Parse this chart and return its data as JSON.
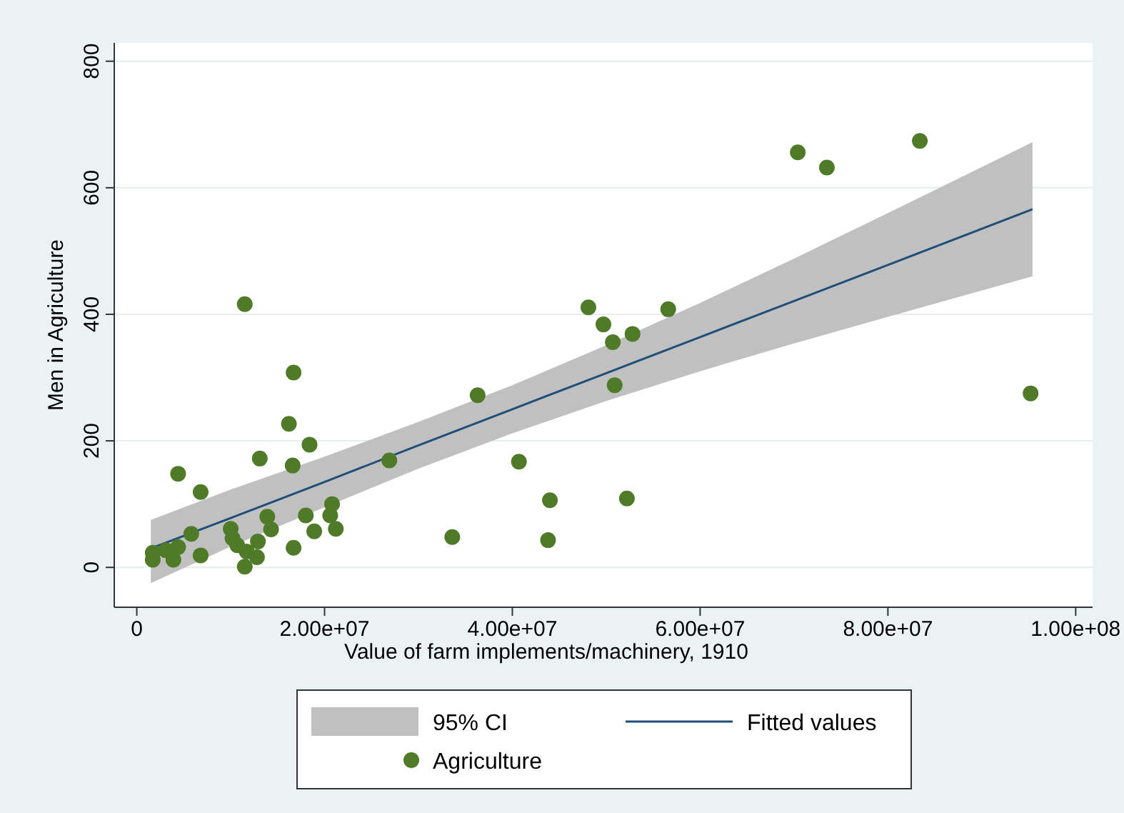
{
  "chart_data": {
    "type": "scatter",
    "xlabel": "Value of farm implements/machinery, 1910",
    "ylabel": "Men in Agriculture",
    "xlim": [
      -2400000,
      101800000
    ],
    "xticks": [
      0,
      {
        "value": 20000000,
        "label": "2.00e+07"
      },
      {
        "value": 40000000,
        "label": "4.00e+07"
      },
      {
        "value": 60000000,
        "label": "6.00e+07"
      },
      {
        "value": 80000000,
        "label": "8.00e+07"
      },
      {
        "value": 100000000,
        "label": "1.00e+08"
      }
    ],
    "ylim": [
      -63,
      829
    ],
    "yticks": [
      0,
      200,
      400,
      600,
      800
    ],
    "grid": "y",
    "legend": "bottom",
    "annotations": [
      "95% CI"
    ],
    "series": [
      {
        "name": "Fitted values",
        "type": "line",
        "color": "#1f4e79",
        "x": [
          1500000,
          10000000,
          20000000,
          30000000,
          40000000,
          50000000,
          60000000,
          70000000,
          80000000,
          95400000
        ],
        "values": [
          30,
          78,
          135,
          193,
          250,
          307,
          364,
          421,
          478,
          566
        ],
        "lower": [
          -25,
          33,
          95,
          156,
          212,
          263,
          310,
          354,
          396,
          460
        ],
        "upper": [
          75,
          123,
          175,
          230,
          288,
          351,
          418,
          488,
          560,
          672
        ]
      },
      {
        "name": "Agriculture",
        "marker": "circle",
        "color": "#4f7a28",
        "x": [
          11500000,
          16700000,
          16200000,
          18400000,
          13100000,
          16600000,
          4400000,
          6800000,
          26900000,
          13900000,
          14300000,
          18000000,
          18900000,
          20800000,
          20600000,
          21200000,
          5800000,
          10000000,
          10200000,
          10700000,
          12900000,
          11700000,
          12800000,
          11500000,
          16700000,
          6800000,
          4400000,
          1700000,
          1700000,
          3100000,
          3900000,
          70400000,
          73500000,
          83400000,
          95200000,
          48100000,
          49700000,
          50700000,
          52800000,
          56600000,
          50900000,
          36300000,
          40700000,
          44000000,
          52200000,
          33600000,
          43800000
        ],
        "values": [
          416,
          308,
          227,
          194,
          172,
          161,
          148,
          119,
          169,
          80,
          60,
          82,
          57,
          100,
          82,
          61,
          53,
          61,
          46,
          35,
          41,
          25,
          16,
          1,
          31,
          19,
          32,
          23,
          12,
          27,
          12,
          656,
          632,
          674,
          275,
          411,
          384,
          356,
          369,
          408,
          288,
          272,
          167,
          106,
          109,
          48,
          43
        ]
      }
    ]
  }
}
